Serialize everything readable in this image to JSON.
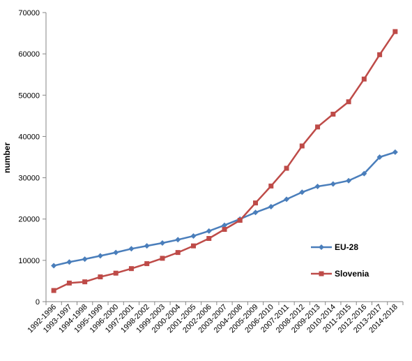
{
  "chart_data": {
    "type": "line",
    "ylabel": "number",
    "xlabel": "",
    "ylim": [
      0,
      70000
    ],
    "yticks": [
      0,
      10000,
      20000,
      30000,
      40000,
      50000,
      60000,
      70000
    ],
    "grid": false,
    "legend_position": "right",
    "categories": [
      "1992-1996",
      "1993-1997",
      "1994-1998",
      "1995-1999",
      "1996-2000",
      "1997-2001",
      "1998-2002",
      "1999-2003",
      "2000-2004",
      "2001-2005",
      "2002-2006",
      "2003-2007",
      "2004-2008",
      "2005-2009",
      "2006-2010",
      "2007-2011",
      "2008-2012",
      "2009-2013",
      "2010-2014",
      "2011-2015",
      "2012-2016",
      "2013-2017",
      "2014-2018"
    ],
    "series": [
      {
        "name": "EU-28",
        "color": "#4a7ebb",
        "marker": "diamond",
        "values": [
          8700,
          9600,
          10300,
          11100,
          11900,
          12800,
          13500,
          14200,
          15000,
          15900,
          17100,
          18500,
          20000,
          21600,
          23000,
          24800,
          26500,
          27900,
          28500,
          29300,
          31000,
          35000,
          36200
        ]
      },
      {
        "name": "Slovenia",
        "color": "#be4b48",
        "marker": "square",
        "values": [
          2700,
          4500,
          4800,
          6000,
          6900,
          8000,
          9200,
          10500,
          11900,
          13500,
          15300,
          17500,
          19700,
          23900,
          28000,
          32300,
          37700,
          42300,
          45400,
          48400,
          53900,
          59800,
          65400
        ]
      }
    ]
  }
}
